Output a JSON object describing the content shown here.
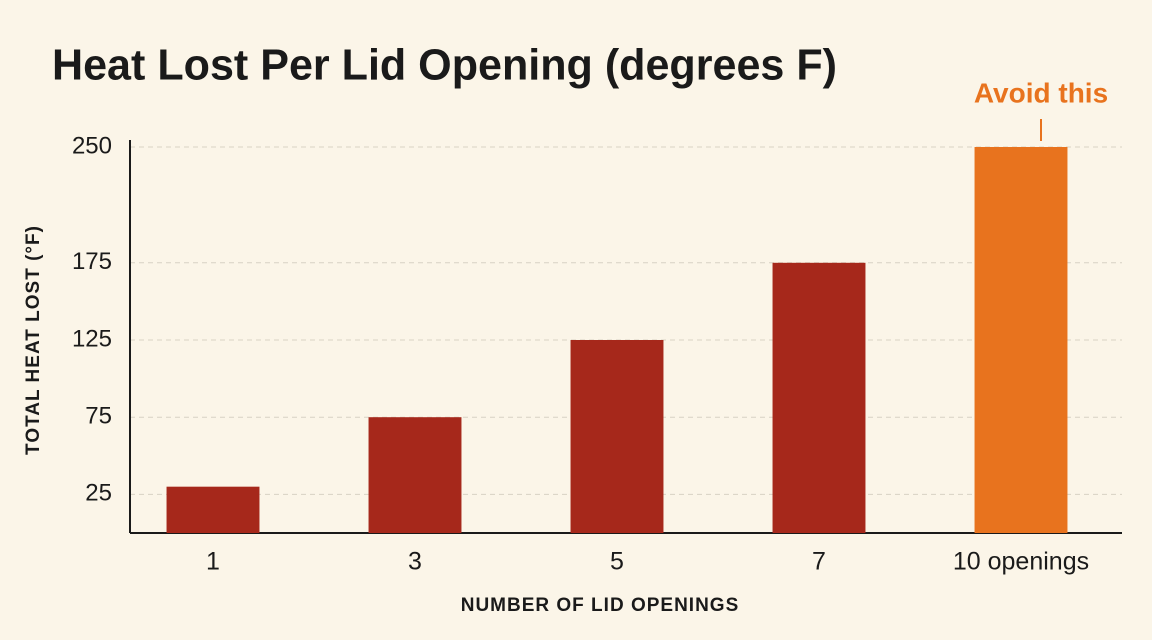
{
  "chart_data": {
    "type": "bar",
    "title": "Heat Lost Per Lid Opening (degrees F)",
    "x_label": "NUMBER OF LID OPENINGS",
    "y_label": "TOTAL HEAT LOST (°F)",
    "categories": [
      "1",
      "3",
      "5",
      "7",
      "10 openings"
    ],
    "values": [
      30,
      75,
      125,
      175,
      250
    ],
    "colors": [
      "#a6281b",
      "#a6281b",
      "#a6281b",
      "#a6281b",
      "#e8731e"
    ],
    "ylim": [
      0,
      250
    ],
    "yticks": [
      25,
      75,
      125,
      175,
      250
    ],
    "grid": true,
    "annotations": [
      {
        "text": "Avoid this",
        "category": "10 openings",
        "color": "#e8731e"
      }
    ]
  }
}
